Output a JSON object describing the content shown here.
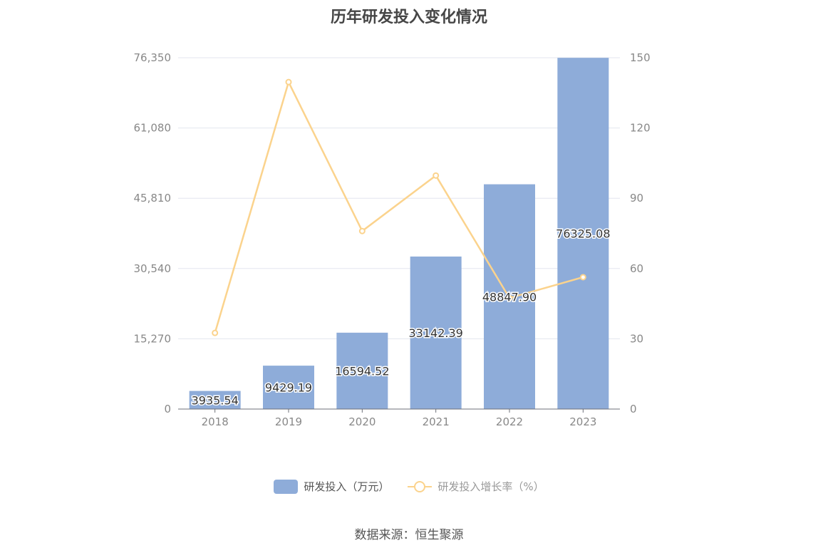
{
  "chart_data": {
    "type": "bar",
    "title": "历年研发投入变化情况",
    "categories": [
      "2018",
      "2019",
      "2020",
      "2021",
      "2022",
      "2023"
    ],
    "series": [
      {
        "name": "研发投入（万元）",
        "type": "bar",
        "axis": "left",
        "color": "#8eacd9",
        "values": [
          3935.54,
          9429.19,
          16594.52,
          33142.39,
          48847.9,
          76325.08
        ],
        "labels": [
          "3935.54",
          "9429.19",
          "16594.52",
          "33142.39",
          "48847.90",
          "76325.08"
        ]
      },
      {
        "name": "研发投入增长率（%）",
        "type": "line",
        "axis": "right",
        "color": "#fbd38d",
        "values": [
          32.5,
          139.6,
          76.0,
          99.7,
          47.4,
          56.3
        ]
      }
    ],
    "y_left": {
      "min": 0,
      "max": 76350,
      "ticks": [
        "0",
        "15,270",
        "30,540",
        "45,810",
        "61,080",
        "76,350"
      ]
    },
    "y_right": {
      "min": 0,
      "max": 150,
      "ticks": [
        "0",
        "30",
        "60",
        "90",
        "120",
        "150"
      ]
    },
    "grid": true,
    "legend_position": "bottom"
  },
  "source": "数据来源：恒生聚源"
}
